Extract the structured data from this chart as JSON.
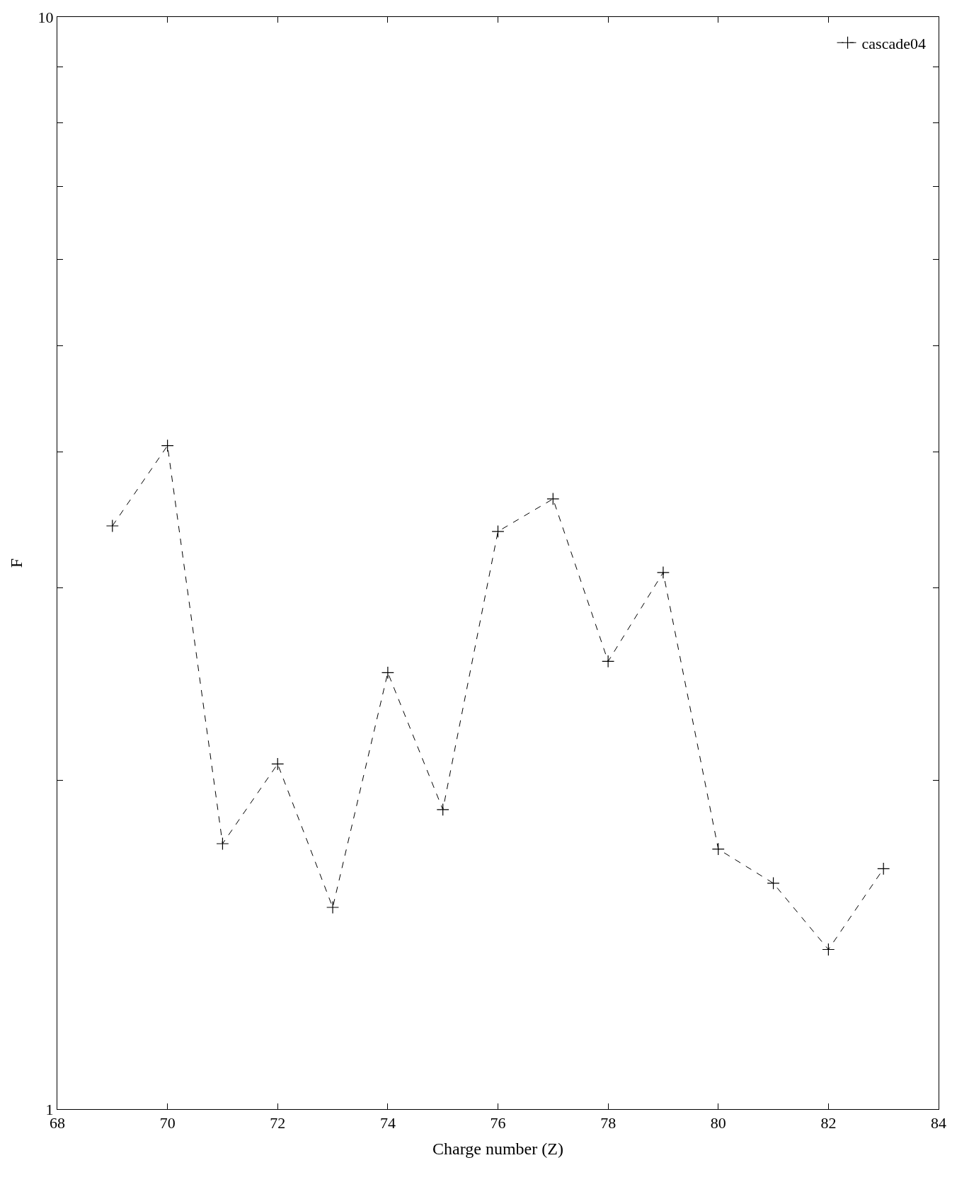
{
  "chart_data": {
    "type": "line",
    "xlabel": "Charge number (Z)",
    "ylabel": "F",
    "x": [
      69,
      70,
      71,
      72,
      73,
      74,
      75,
      76,
      77,
      78,
      79,
      80,
      81,
      82,
      83
    ],
    "series": [
      {
        "name": "cascade04",
        "color": "#000000",
        "values": [
          3.42,
          4.05,
          1.75,
          2.07,
          1.53,
          2.51,
          1.88,
          3.38,
          3.62,
          2.57,
          3.1,
          1.73,
          1.61,
          1.4,
          1.66
        ]
      }
    ],
    "log": true,
    "xlim": [
      68,
      84
    ],
    "xticks": [
      68,
      70,
      72,
      74,
      76,
      78,
      80,
      82,
      84
    ],
    "ylim": [
      1,
      10
    ],
    "yticks": [
      1,
      {
        "value": 2,
        "label": null
      },
      {
        "value": 3,
        "label": null
      },
      {
        "value": 4,
        "label": null
      },
      {
        "value": 5,
        "label": null
      },
      {
        "value": 6,
        "label": null
      },
      {
        "value": 7,
        "label": null
      },
      {
        "value": 8,
        "label": null
      },
      {
        "value": 9,
        "label": null
      },
      10
    ],
    "grid": false,
    "legend": "top right",
    "marker": "cross",
    "line_style": "dashed"
  }
}
